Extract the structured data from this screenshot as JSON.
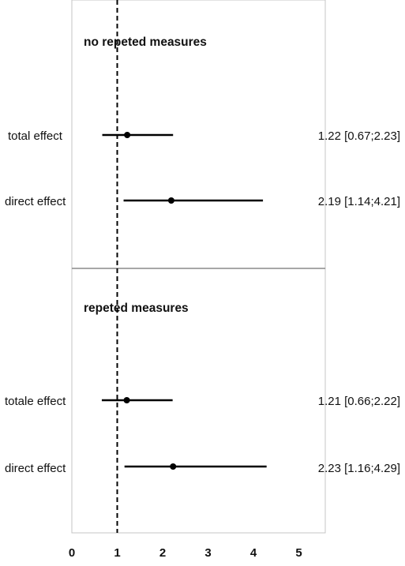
{
  "chart_data": {
    "type": "forest",
    "reference_line": 1,
    "xlim": [
      0,
      5.6
    ],
    "x_ticks": [
      "0",
      "1",
      "2",
      "3",
      "4",
      "5"
    ],
    "x_tick_values": [
      0,
      1,
      2,
      3,
      4,
      5
    ],
    "grid": false,
    "panels": [
      {
        "title": "no repeted measures",
        "rows": [
          {
            "label": "total effect",
            "estimate": 1.22,
            "lower": 0.67,
            "upper": 2.23,
            "ci_text": "1.22 [0.67;2.23]"
          },
          {
            "label": "direct effect",
            "estimate": 2.19,
            "lower": 1.14,
            "upper": 4.21,
            "ci_text": "2.19 [1.14;4.21]"
          }
        ]
      },
      {
        "title": "repeted measures",
        "rows": [
          {
            "label": "totale effect",
            "estimate": 1.21,
            "lower": 0.66,
            "upper": 2.22,
            "ci_text": "1.21 [0.66;2.22]"
          },
          {
            "label": "direct effect",
            "estimate": 2.23,
            "lower": 1.16,
            "upper": 4.29,
            "ci_text": "2.23 [1.16;4.29]"
          }
        ]
      }
    ]
  }
}
